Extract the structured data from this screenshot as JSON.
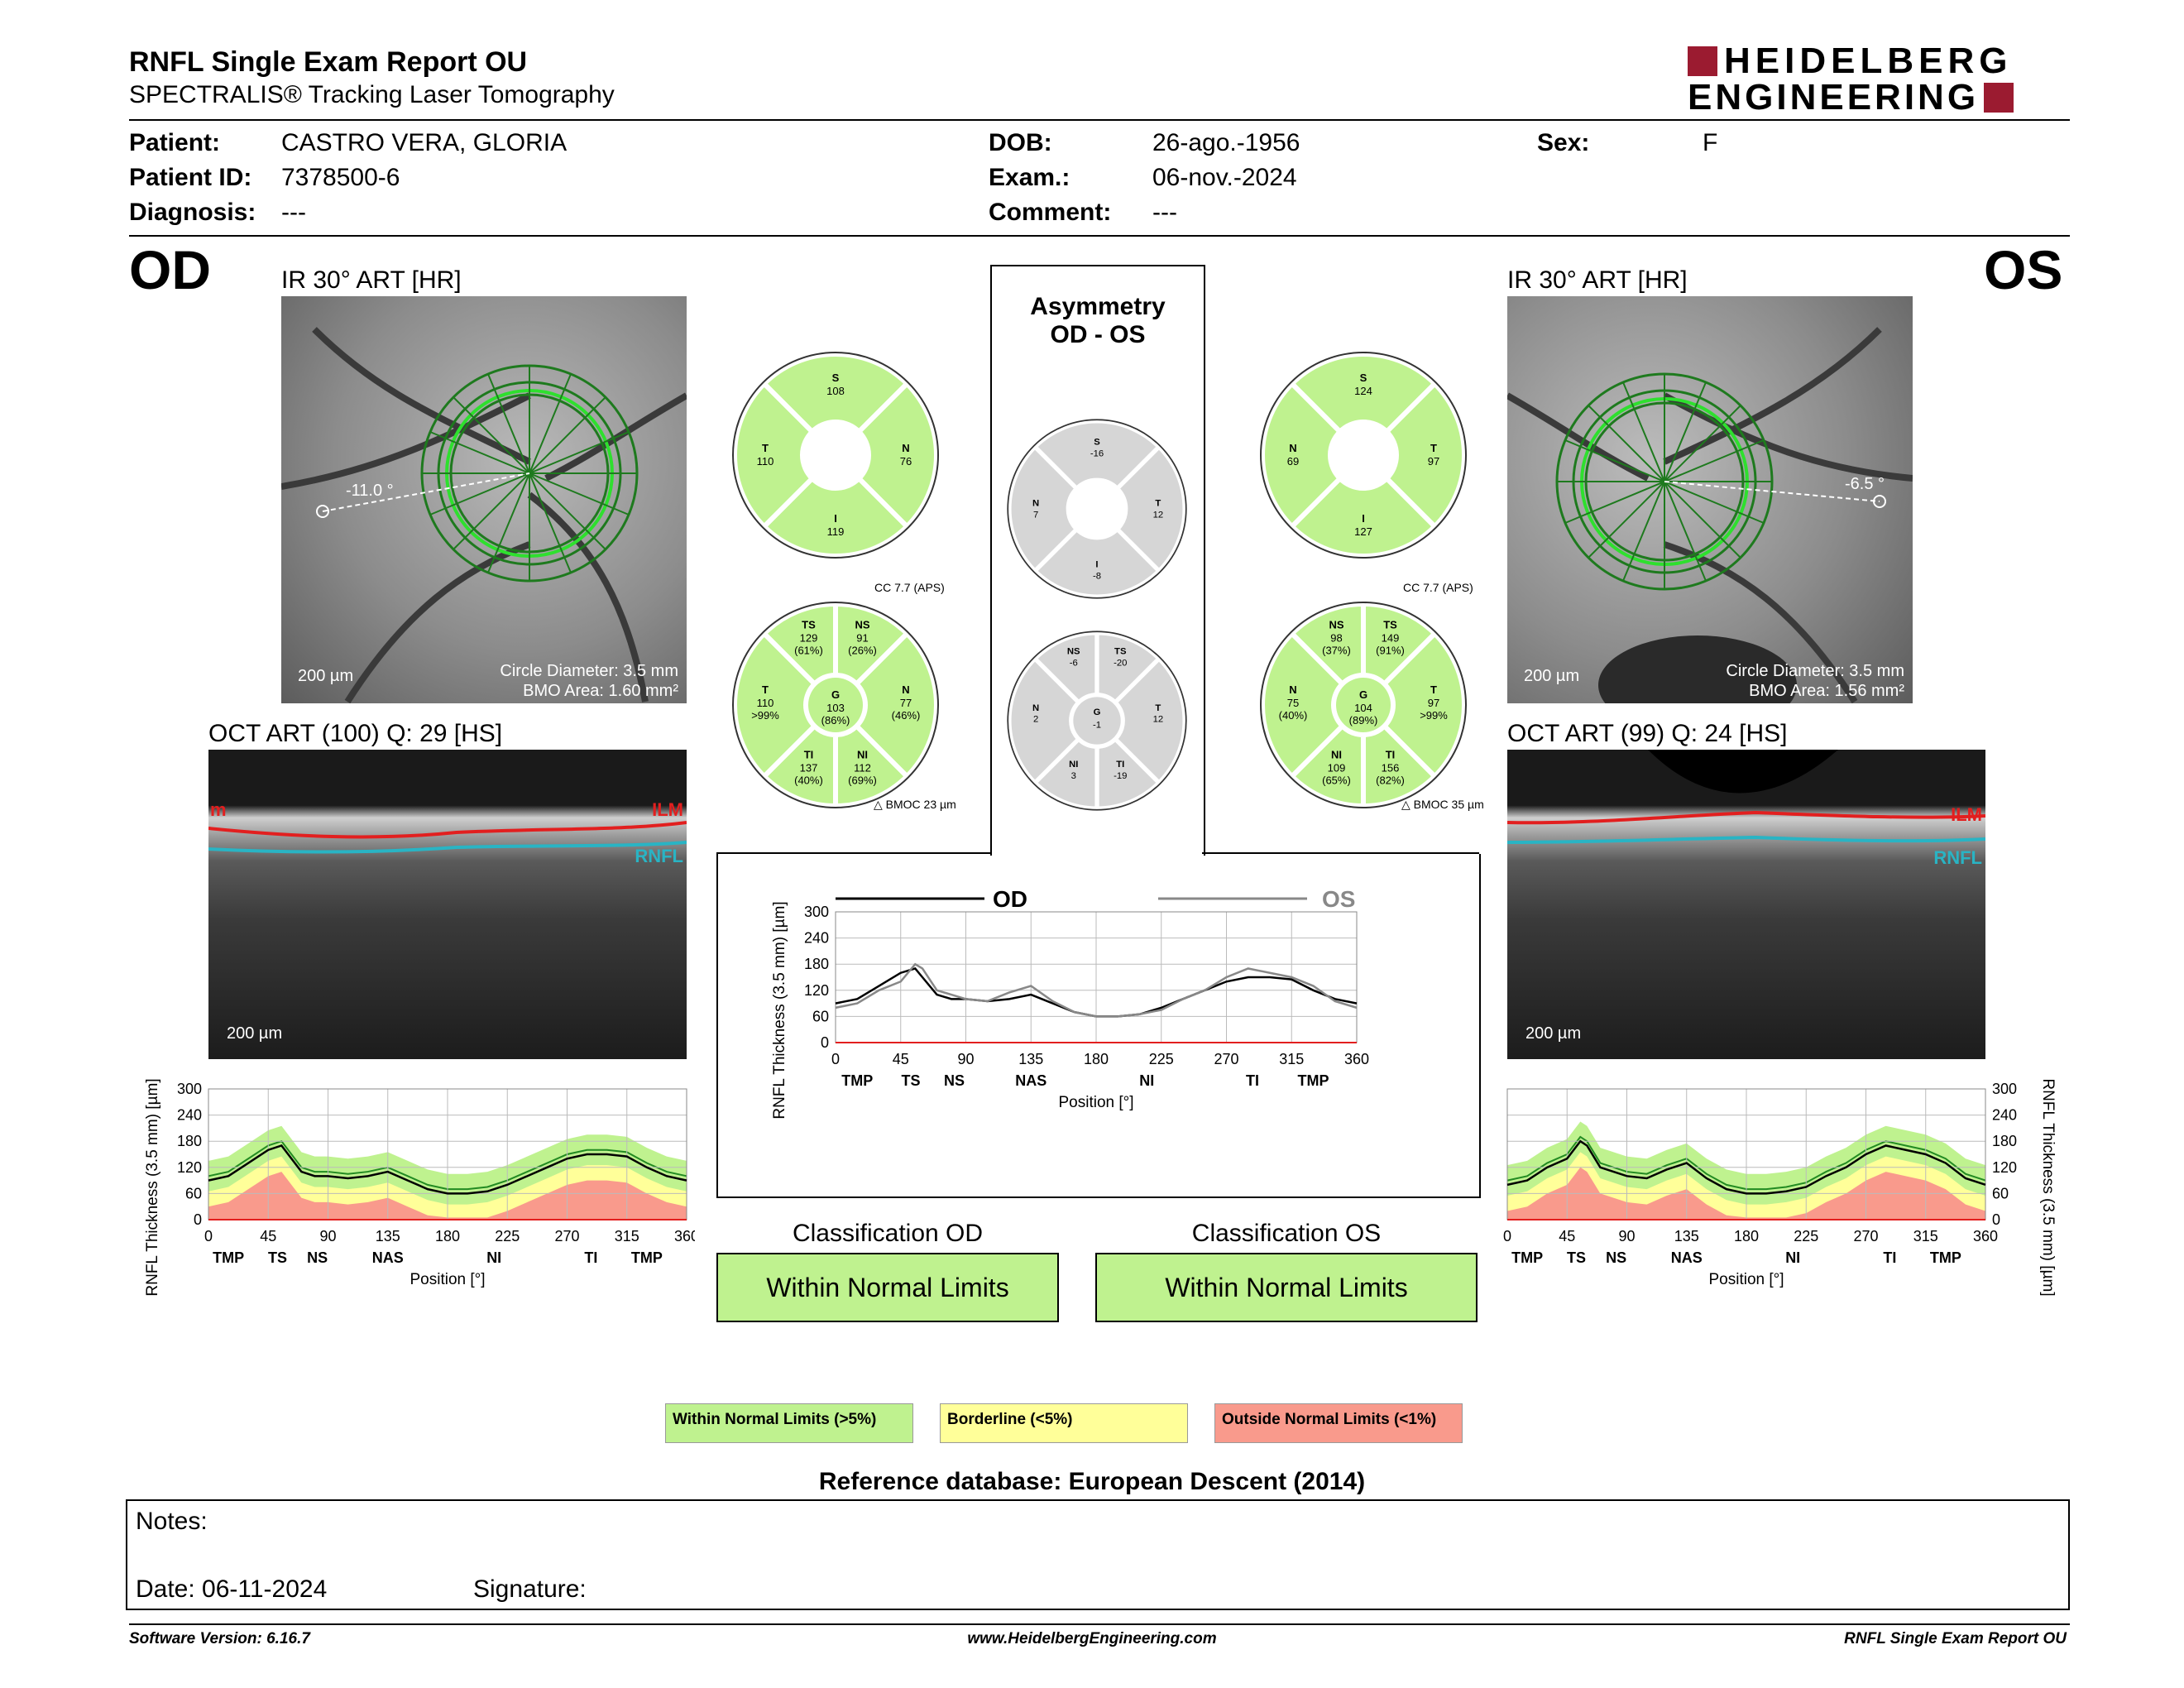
{
  "header": {
    "title": "RNFL Single Exam Report OU",
    "subtitle": "SPECTRALIS® Tracking Laser Tomography",
    "logo_line1": "HEIDELBERG",
    "logo_line2": "ENGINEERING"
  },
  "patient": {
    "patient_label": "Patient:",
    "patient_value": "CASTRO VERA, GLORIA",
    "id_label": "Patient ID:",
    "id_value": "7378500-6",
    "diag_label": "Diagnosis:",
    "diag_value": "---",
    "dob_label": "DOB:",
    "dob_value": "26-ago.-1956",
    "exam_label": "Exam.:",
    "exam_value": "06-nov.-2024",
    "comment_label": "Comment:",
    "comment_value": "---",
    "sex_label": "Sex:",
    "sex_value": "F"
  },
  "od": {
    "eye": "OD",
    "ir_title": "IR 30° ART [HR]",
    "angle": "-11.0 °",
    "scale": "200 µm",
    "circle_diameter": "Circle Diameter: 3.5 mm",
    "bmo_area": "BMO Area: 1.60 mm²",
    "oct_title": "OCT ART (100) Q: 29 [HS]",
    "oct_scale": "200 µm",
    "ilm": "ILM",
    "ilm_cut": "m",
    "rnfl": "RNFL",
    "sectors4": {
      "S": "108",
      "N": "76",
      "I": "119",
      "T": "110"
    },
    "cc": "CC 7.7 (APS)",
    "sectors6": {
      "TS": [
        "129",
        "(61%)"
      ],
      "NS": [
        "91",
        "(26%)"
      ],
      "T": [
        "110",
        ">99%"
      ],
      "G": [
        "103",
        "(86%)"
      ],
      "N": [
        "77",
        "(46%)"
      ],
      "TI": [
        "137",
        "(40%)"
      ],
      "NI": [
        "112",
        "(69%)"
      ]
    },
    "bmoc": "BMOC 23 µm",
    "classification_title": "Classification OD",
    "classification": "Within Normal Limits"
  },
  "os": {
    "eye": "OS",
    "ir_title": "IR 30° ART [HR]",
    "angle": "-6.5 °",
    "scale": "200 µm",
    "circle_diameter": "Circle Diameter: 3.5 mm",
    "bmo_area": "BMO Area: 1.56 mm²",
    "oct_title": "OCT ART (99) Q: 24 [HS]",
    "oct_scale": "200 µm",
    "ilm": "ILM",
    "rnfl": "RNFL",
    "sectors4": {
      "S": "124",
      "N": "69",
      "I": "127",
      "T": "97"
    },
    "cc": "CC 7.7 (APS)",
    "sectors6": {
      "NS": [
        "98",
        "(37%)"
      ],
      "TS": [
        "149",
        "(91%)"
      ],
      "N": [
        "75",
        "(40%)"
      ],
      "G": [
        "104",
        "(89%)"
      ],
      "T": [
        "97",
        ">99%"
      ],
      "NI": [
        "109",
        "(65%)"
      ],
      "TI": [
        "156",
        "(82%)"
      ]
    },
    "bmoc": "BMOC 35 µm",
    "classification_title": "Classification OS",
    "classification": "Within Normal Limits"
  },
  "asymmetry": {
    "title1": "Asymmetry",
    "title2": "OD - OS",
    "sectors4": {
      "S": "-16",
      "N": "7",
      "T": "12",
      "I": "-8"
    },
    "sectors6": {
      "NS": "-6",
      "TS": "-20",
      "N": "2",
      "G": "-1",
      "T": "12",
      "NI": "3",
      "TI": "-19"
    }
  },
  "chart_data": [
    {
      "type": "line",
      "title": "",
      "legend": [
        "OD",
        "OS"
      ],
      "ylabel": "RNFL Thickness (3.5 mm) [µm]",
      "xlabel": "Position [°]",
      "xlim": [
        0,
        360
      ],
      "ylim": [
        0,
        300
      ],
      "xticks": [
        "0",
        "45",
        "90",
        "135",
        "180",
        "225",
        "270",
        "315",
        "360"
      ],
      "yticks": [
        "0",
        "60",
        "120",
        "180",
        "240",
        "300"
      ],
      "region_labels": [
        "TMP",
        "TS",
        "NS",
        "NAS",
        "NI",
        "TI",
        "TMP"
      ],
      "x": [
        0,
        15,
        30,
        45,
        55,
        60,
        70,
        80,
        90,
        105,
        120,
        135,
        150,
        165,
        180,
        195,
        210,
        225,
        240,
        255,
        270,
        285,
        300,
        315,
        330,
        345,
        360
      ],
      "series": [
        {
          "name": "OD",
          "values": [
            90,
            100,
            130,
            160,
            170,
            150,
            110,
            100,
            100,
            95,
            100,
            110,
            90,
            70,
            60,
            60,
            65,
            80,
            100,
            120,
            140,
            150,
            150,
            145,
            120,
            100,
            90
          ]
        },
        {
          "name": "OS",
          "values": [
            80,
            90,
            120,
            140,
            180,
            170,
            120,
            110,
            100,
            95,
            115,
            130,
            95,
            70,
            60,
            60,
            65,
            75,
            100,
            120,
            150,
            170,
            160,
            150,
            130,
            95,
            80
          ]
        }
      ]
    },
    {
      "type": "line",
      "title": "",
      "ylabel": "RNFL Thickness (3.5 mm) [µm]",
      "xlabel": "Position [°]",
      "xlim": [
        0,
        360
      ],
      "ylim": [
        0,
        300
      ],
      "xticks": [
        "0",
        "45",
        "90",
        "135",
        "180",
        "225",
        "270",
        "315",
        "360"
      ],
      "yticks": [
        "0",
        "60",
        "120",
        "180",
        "240",
        "300"
      ],
      "region_labels": [
        "TMP",
        "TS",
        "NS",
        "NAS",
        "NI",
        "TI",
        "TMP"
      ],
      "x": [
        0,
        15,
        30,
        45,
        55,
        60,
        70,
        80,
        90,
        105,
        120,
        135,
        150,
        165,
        180,
        195,
        210,
        225,
        240,
        255,
        270,
        285,
        300,
        315,
        330,
        345,
        360
      ],
      "series": [
        {
          "name": "OD",
          "values": [
            90,
            100,
            130,
            160,
            170,
            150,
            110,
            100,
            100,
            95,
            100,
            110,
            90,
            70,
            60,
            60,
            65,
            80,
            100,
            120,
            140,
            150,
            150,
            145,
            120,
            100,
            90
          ]
        }
      ]
    },
    {
      "type": "line",
      "title": "",
      "ylabel": "RNFL Thickness (3.5 mm) [µm]",
      "xlabel": "Position [°]",
      "xlim": [
        0,
        360
      ],
      "ylim": [
        0,
        300
      ],
      "xticks": [
        "0",
        "45",
        "90",
        "135",
        "180",
        "225",
        "270",
        "315",
        "360"
      ],
      "yticks": [
        "0",
        "60",
        "120",
        "180",
        "240",
        "300"
      ],
      "region_labels": [
        "TMP",
        "TS",
        "NS",
        "NAS",
        "NI",
        "TI",
        "TMP"
      ],
      "x": [
        0,
        15,
        30,
        45,
        55,
        60,
        70,
        80,
        90,
        105,
        120,
        135,
        150,
        165,
        180,
        195,
        210,
        225,
        240,
        255,
        270,
        285,
        300,
        315,
        330,
        345,
        360
      ],
      "series": [
        {
          "name": "OS",
          "values": [
            80,
            90,
            120,
            140,
            180,
            170,
            120,
            110,
            100,
            95,
            115,
            130,
            95,
            70,
            60,
            60,
            65,
            75,
            100,
            120,
            150,
            170,
            160,
            150,
            130,
            95,
            80
          ]
        }
      ]
    }
  ],
  "legend": {
    "wnl": "Within Normal Limits (>5%)",
    "bl": "Borderline (<5%)",
    "onl": "Outside Normal Limits (<1%)",
    "wnl_color": "#bff28f",
    "bl_color": "#ffff99",
    "onl_color": "#f99a8c"
  },
  "reference": "Reference database: European Descent (2014)",
  "notes": {
    "notes_label": "Notes:",
    "date_label": "Date: 06-11-2024",
    "signature_label": "Signature:"
  },
  "footer": {
    "software": "Software Version: 6.16.7",
    "url": "www.HeidelbergEngineering.com",
    "report": "RNFL Single Exam Report OU"
  },
  "colors": {
    "normal_green": "#bff28f",
    "asym_gray": "#d6d6d6",
    "od_line": "#000000",
    "os_line": "#888888",
    "logo_red": "#9b1b30"
  }
}
